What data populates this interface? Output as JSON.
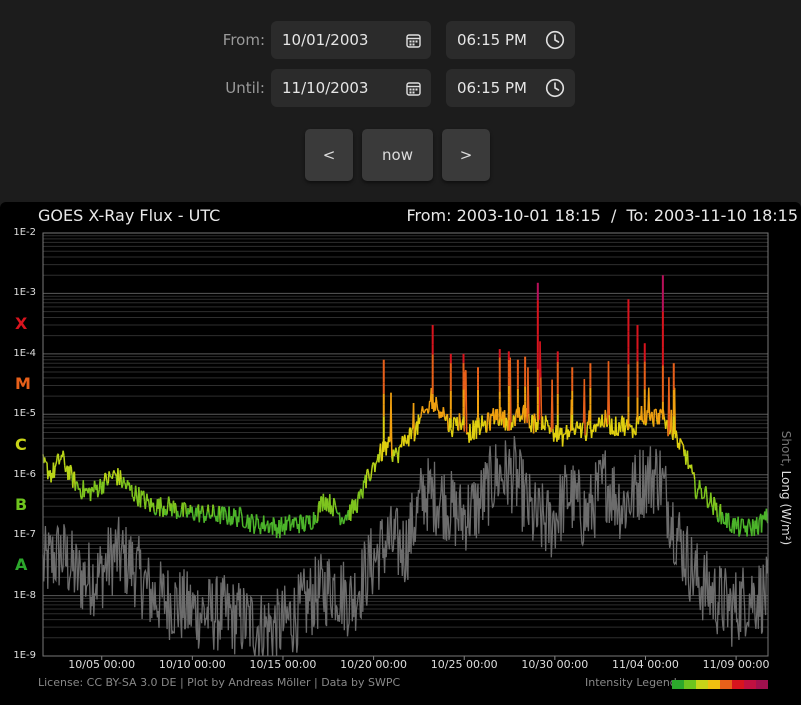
{
  "controls": {
    "from_label": "From:",
    "from_date": "10/01/2003",
    "from_time": "06:15 PM",
    "until_label": "Until:",
    "until_date": "11/10/2003",
    "until_time": "06:15 PM",
    "prev_label": "<",
    "now_label": "now",
    "next_label": ">"
  },
  "chart_data": {
    "type": "line",
    "title": "GOES X-Ray Flux - UTC",
    "range_label": "From: 2003-10-01 18:15  /  To: 2003-11-10 18:15",
    "ylabel_short": "Short,",
    "ylabel_long": "Long (W/m²)",
    "y_scale": "log",
    "ylim": [
      1e-09,
      0.01
    ],
    "y_ticks": [
      "1E-2",
      "1E-3",
      "1E-4",
      "1E-5",
      "1E-6",
      "1E-7",
      "1E-8",
      "1E-9"
    ],
    "flare_classes": [
      {
        "name": "X",
        "value": 0.0001,
        "color": "#d8141e"
      },
      {
        "name": "M",
        "value": 1e-05,
        "color": "#e8601a"
      },
      {
        "name": "C",
        "value": 1e-06,
        "color": "#c8d418"
      },
      {
        "name": "B",
        "value": 1e-07,
        "color": "#6ec41e"
      },
      {
        "name": "A",
        "value": 1e-08,
        "color": "#2ca82c"
      }
    ],
    "x_ticks": [
      "10/05 00:00",
      "10/10 00:00",
      "10/15 00:00",
      "10/20 00:00",
      "10/25 00:00",
      "10/30 00:00",
      "11/04 00:00",
      "11/09 00:00"
    ],
    "x_tick_days": [
      3.24,
      8.24,
      13.24,
      18.24,
      23.24,
      28.24,
      33.24,
      38.24
    ],
    "x_range_days": [
      0,
      40
    ],
    "grid": true,
    "series": [
      {
        "name": "Long",
        "values": [
          [
            0,
            1.5e-06
          ],
          [
            0.5,
            1e-06
          ],
          [
            1,
            2e-06
          ],
          [
            1.5,
            1e-06
          ],
          [
            2,
            6e-07
          ],
          [
            2.5,
            5e-07
          ],
          [
            3,
            6e-07
          ],
          [
            3.5,
            8e-07
          ],
          [
            4,
            1e-06
          ],
          [
            4.5,
            7e-07
          ],
          [
            5,
            5e-07
          ],
          [
            5.5,
            4e-07
          ],
          [
            6,
            3e-07
          ],
          [
            6.5,
            3e-07
          ],
          [
            7,
            3e-07
          ],
          [
            7.5,
            2.5e-07
          ],
          [
            8,
            2.3e-07
          ],
          [
            8.5,
            2.4e-07
          ],
          [
            9,
            2.2e-07
          ],
          [
            9.5,
            2.2e-07
          ],
          [
            10,
            2.1e-07
          ],
          [
            10.5,
            2e-07
          ],
          [
            11,
            2e-07
          ],
          [
            11.5,
            1.6e-07
          ],
          [
            12,
            1.5e-07
          ],
          [
            12.5,
            1.5e-07
          ],
          [
            13,
            1.3e-07
          ],
          [
            13.5,
            1.5e-07
          ],
          [
            14,
            1.6e-07
          ],
          [
            14.5,
            1.5e-07
          ],
          [
            15,
            2e-07
          ],
          [
            15.5,
            4e-07
          ],
          [
            16,
            3e-07
          ],
          [
            16.5,
            2e-07
          ],
          [
            17,
            2.5e-07
          ],
          [
            17.5,
            4e-07
          ],
          [
            18,
            1e-06
          ],
          [
            18.5,
            2e-06
          ],
          [
            19,
            3e-06
          ],
          [
            19.5,
            2e-06
          ],
          [
            20,
            4e-06
          ],
          [
            20.5,
            5e-06
          ],
          [
            21,
            1e-05
          ],
          [
            21.5,
            1.5e-05
          ],
          [
            22,
            1.2e-05
          ],
          [
            22.5,
            6e-06
          ],
          [
            23,
            8e-06
          ],
          [
            23.5,
            5e-06
          ],
          [
            24,
            6e-06
          ],
          [
            24.5,
            7e-06
          ],
          [
            25,
            1e-05
          ],
          [
            25.5,
            8e-06
          ],
          [
            26,
            8e-06
          ],
          [
            26.5,
            1e-05
          ],
          [
            27,
            7e-06
          ],
          [
            27.5,
            8e-06
          ],
          [
            28,
            6e-06
          ],
          [
            28.5,
            4e-06
          ],
          [
            29,
            5e-06
          ],
          [
            29.5,
            6e-06
          ],
          [
            30,
            5e-06
          ],
          [
            30.5,
            7e-06
          ],
          [
            31,
            8e-06
          ],
          [
            31.5,
            6e-06
          ],
          [
            32,
            7e-06
          ],
          [
            32.5,
            5e-06
          ],
          [
            33,
            1e-05
          ],
          [
            33.5,
            8e-06
          ],
          [
            34,
            1e-05
          ],
          [
            34.5,
            6e-06
          ],
          [
            35,
            4e-06
          ],
          [
            35.5,
            2e-06
          ],
          [
            36,
            6e-07
          ],
          [
            36.5,
            5e-07
          ],
          [
            37,
            3e-07
          ],
          [
            37.5,
            2e-07
          ],
          [
            38,
            1.5e-07
          ],
          [
            38.5,
            1.3e-07
          ],
          [
            39,
            1.3e-07
          ],
          [
            39.5,
            1.5e-07
          ],
          [
            40,
            2e-07
          ]
        ]
      },
      {
        "name": "Short",
        "values": [
          [
            0,
            3e-08
          ],
          [
            1,
            5e-08
          ],
          [
            2,
            2e-08
          ],
          [
            3,
            2e-08
          ],
          [
            4,
            5e-08
          ],
          [
            5,
            3e-08
          ],
          [
            6,
            1e-08
          ],
          [
            7,
            8e-09
          ],
          [
            8,
            6e-09
          ],
          [
            9,
            5e-09
          ],
          [
            10,
            5e-09
          ],
          [
            11,
            4e-09
          ],
          [
            12,
            3e-09
          ],
          [
            13,
            3e-09
          ],
          [
            14,
            5e-09
          ],
          [
            15,
            1e-08
          ],
          [
            16,
            1.5e-08
          ],
          [
            17,
            8e-09
          ],
          [
            18,
            3e-08
          ],
          [
            19,
            8e-08
          ],
          [
            20,
            6e-08
          ],
          [
            21,
            5e-07
          ],
          [
            22,
            4e-07
          ],
          [
            23,
            2e-07
          ],
          [
            24,
            3e-07
          ],
          [
            25,
            1e-06
          ],
          [
            26,
            1e-06
          ],
          [
            27,
            2e-07
          ],
          [
            28,
            1.5e-07
          ],
          [
            29,
            5e-07
          ],
          [
            30,
            2e-07
          ],
          [
            31,
            8e-07
          ],
          [
            32,
            3e-07
          ],
          [
            33,
            8e-07
          ],
          [
            34,
            1e-06
          ],
          [
            35,
            1e-07
          ],
          [
            36,
            2e-08
          ],
          [
            37,
            1e-08
          ],
          [
            38,
            6e-09
          ],
          [
            39,
            1e-08
          ],
          [
            40,
            1e-08
          ]
        ]
      }
    ],
    "license": "License: CC BY-SA 3.0 DE | Plot by Andreas Möller | Data by SWPC",
    "legend_label": "Intensity Legend",
    "intensity_legend_colors": [
      "#2ca82c",
      "#6ec41e",
      "#c8d418",
      "#f0c010",
      "#e8601a",
      "#d8141e",
      "#c01040",
      "#a0104e"
    ]
  }
}
